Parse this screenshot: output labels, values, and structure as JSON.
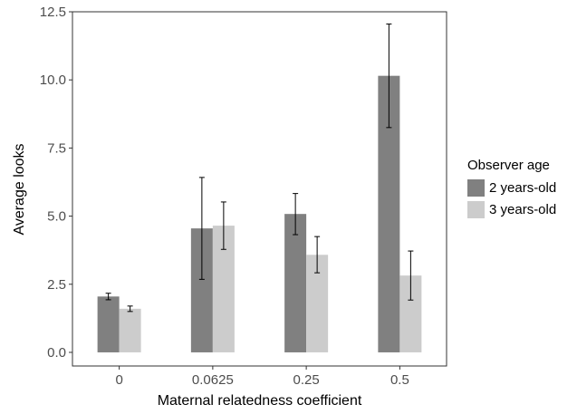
{
  "chart_data": {
    "type": "bar",
    "xlabel": "Maternal relatedness coefficient",
    "ylabel": "Average looks",
    "categories": [
      "0",
      "0.0625",
      "0.25",
      "0.5"
    ],
    "ylim": [
      -0.5,
      12.5
    ],
    "yticks": [
      "0.0",
      "2.5",
      "5.0",
      "7.5",
      "10.0",
      "12.5"
    ],
    "grid": false,
    "legend": {
      "title": "Observer age",
      "placement": "right"
    },
    "series": [
      {
        "name": "2 years-old",
        "color": "#808080",
        "values": [
          2.05,
          4.55,
          5.08,
          10.15
        ],
        "err_low": [
          1.93,
          2.68,
          4.32,
          8.25
        ],
        "err_high": [
          2.17,
          6.42,
          5.83,
          12.05
        ]
      },
      {
        "name": "3 years-old",
        "color": "#cccccc",
        "values": [
          1.6,
          4.65,
          3.58,
          2.82
        ],
        "err_low": [
          1.5,
          3.78,
          2.92,
          1.92
        ],
        "err_high": [
          1.7,
          5.52,
          4.25,
          3.72
        ]
      }
    ]
  }
}
